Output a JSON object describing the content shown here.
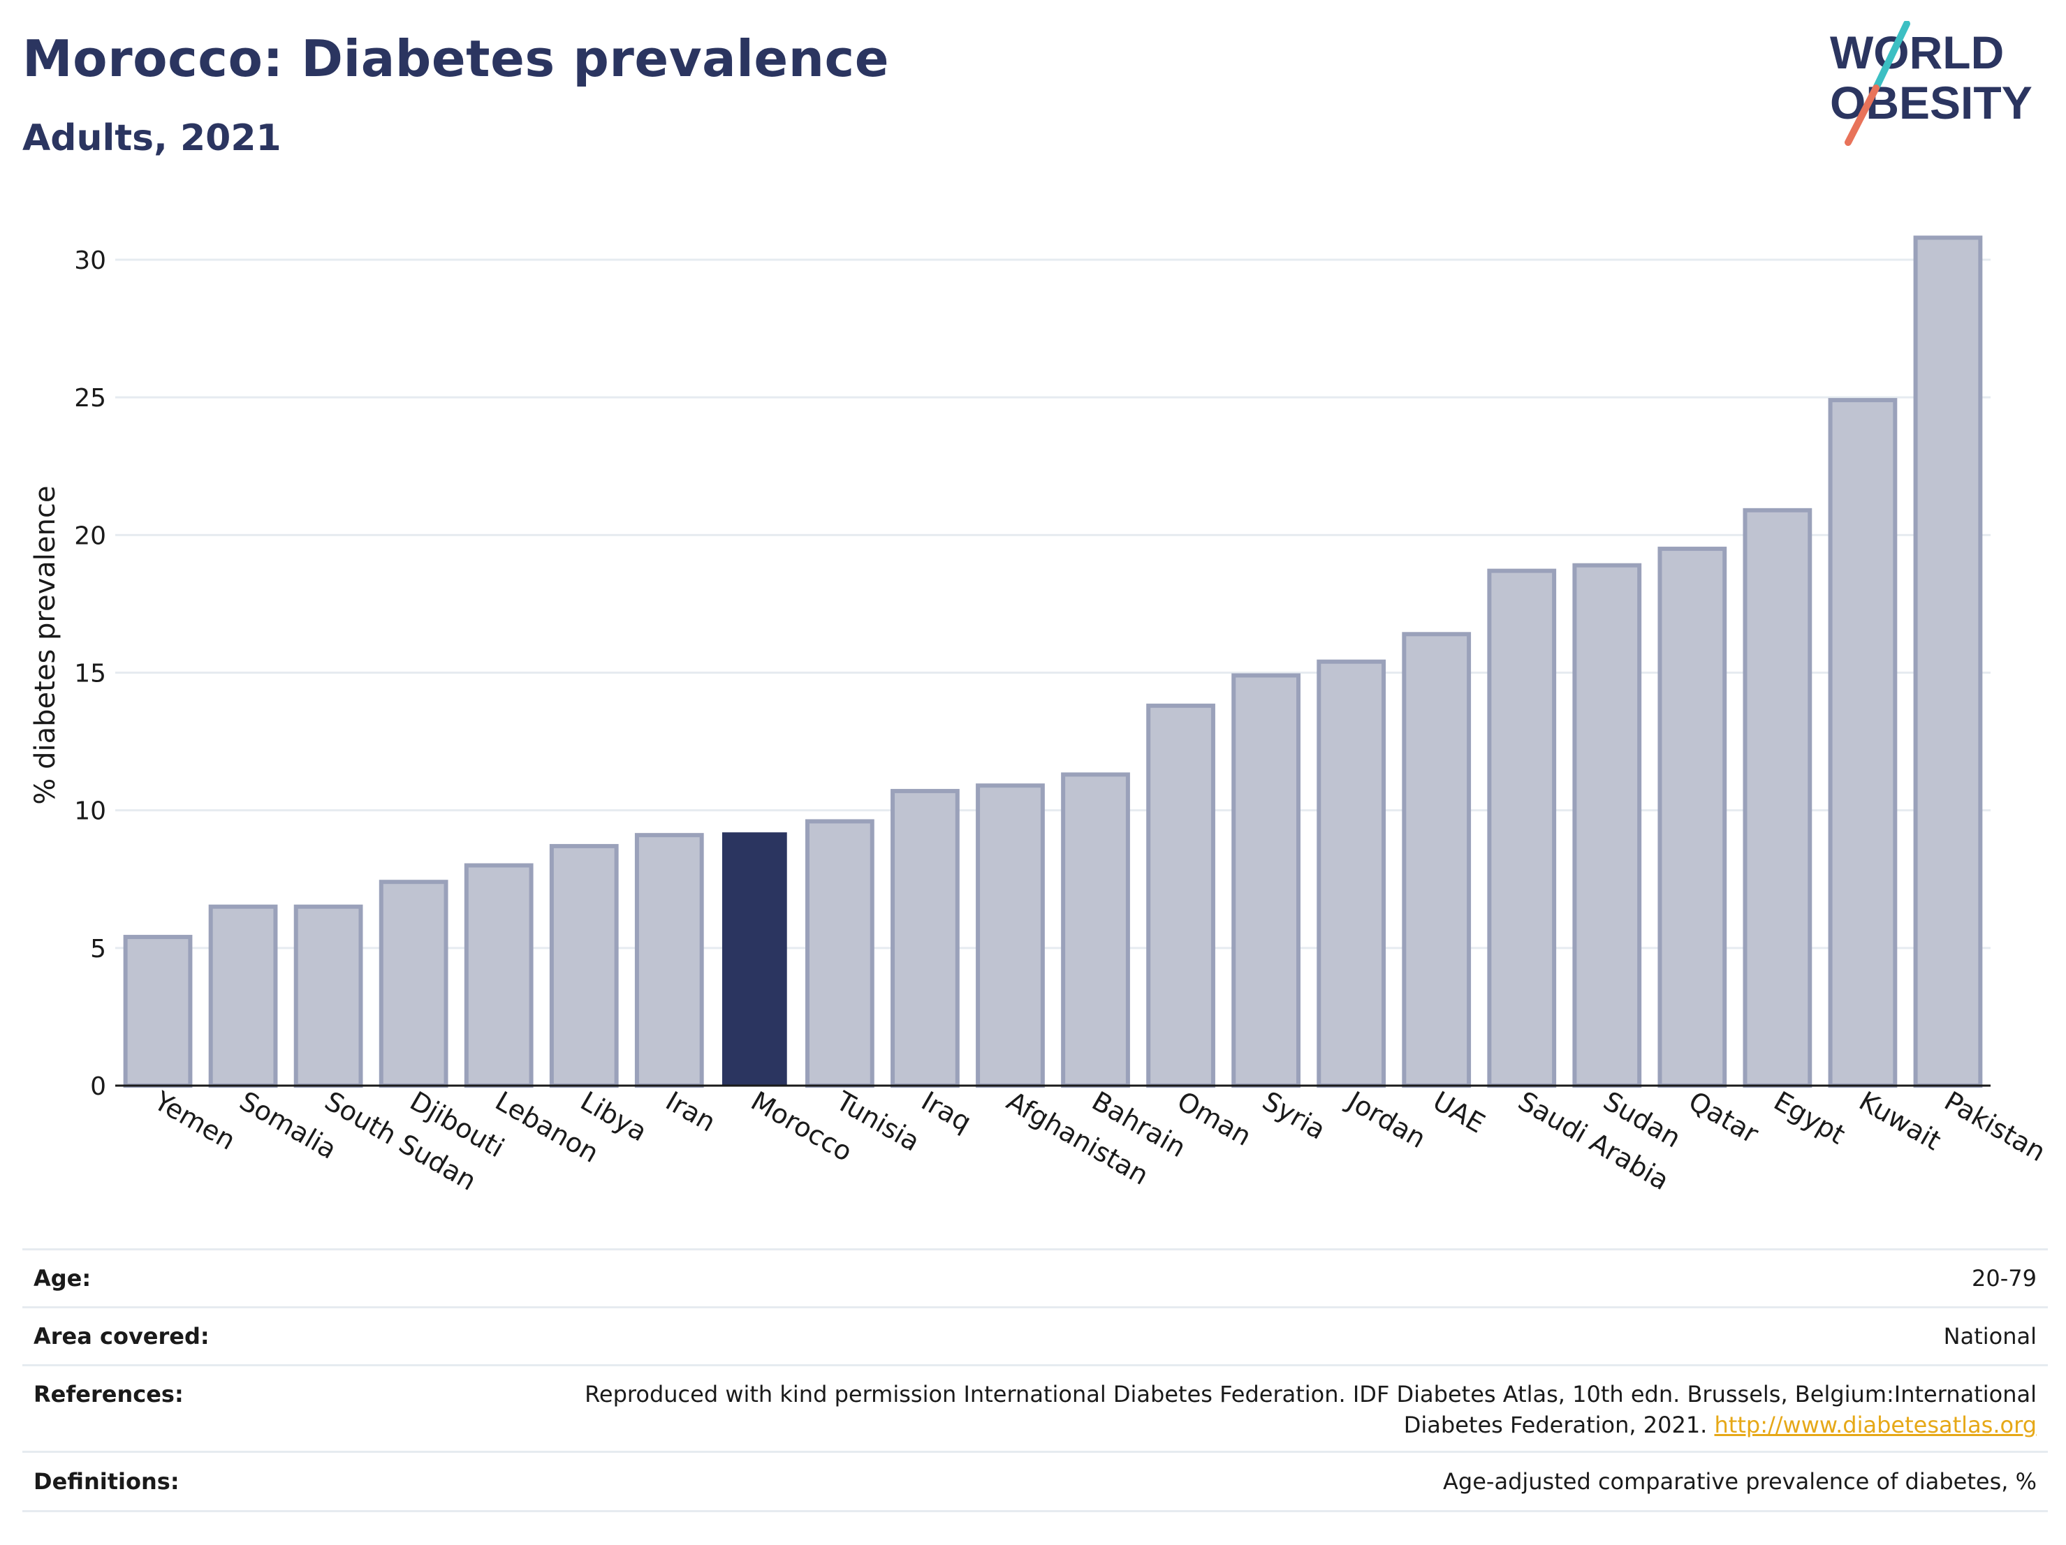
{
  "header": {
    "title": "Morocco: Diabetes prevalence",
    "subtitle": "Adults, 2021"
  },
  "logo": {
    "line1": "WORLD",
    "line2": "OBESITY",
    "slash_colors": [
      "#3cbfc3",
      "#e8735a"
    ],
    "text_color": "#2b3560"
  },
  "chart_data": {
    "type": "bar",
    "ylabel": "% diabetes prevalence",
    "xlabel": "",
    "ylim": [
      0,
      32
    ],
    "yticks": [
      0,
      5,
      10,
      15,
      20,
      25,
      30
    ],
    "grid": true,
    "highlight": "Morocco",
    "colors": {
      "bar": "#bfc3d1",
      "bar_edge": "#9aa1ba",
      "highlight": "#2b3560"
    },
    "categories": [
      "Yemen",
      "Somalia",
      "South Sudan",
      "Djibouti",
      "Lebanon",
      "Libya",
      "Iran",
      "Morocco",
      "Tunisia",
      "Iraq",
      "Afghanistan",
      "Bahrain",
      "Oman",
      "Syria",
      "Jordan",
      "UAE",
      "Saudi Arabia",
      "Sudan",
      "Qatar",
      "Egypt",
      "Kuwait",
      "Pakistan"
    ],
    "values": [
      5.4,
      6.5,
      6.5,
      7.4,
      8.0,
      8.7,
      9.1,
      9.2,
      9.6,
      10.7,
      10.9,
      11.3,
      13.8,
      14.9,
      15.4,
      16.4,
      18.7,
      18.9,
      19.5,
      20.9,
      24.9,
      30.8
    ]
  },
  "footer": {
    "age_label": "Age:",
    "age_value": "20-79",
    "area_label": "Area covered:",
    "area_value": "National",
    "references_label": "References:",
    "references_line1": "Reproduced with kind permission International Diabetes Federation.  IDF Diabetes Atlas, 10th edn. Brussels, Belgium:International",
    "references_line2": "Diabetes Federation, 2021.",
    "references_link": "http://www.diabetesatlas.org",
    "definitions_label": "Definitions:",
    "definitions_value": "Age-adjusted comparative prevalence of diabetes, %"
  }
}
